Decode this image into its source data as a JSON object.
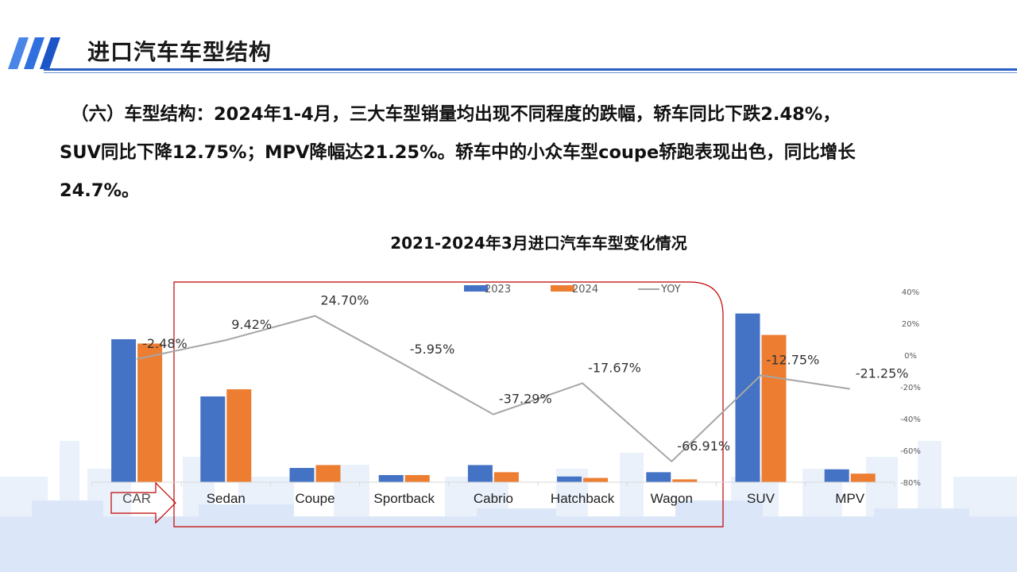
{
  "header": {
    "title": "进口汽车车型结构"
  },
  "body": {
    "lines": [
      "（六）车型结构：2024年1-4月，三大车型销量均出现不同程度的跌幅，轿车同比下跌2.48%，",
      "SUV同比下降12.75%；MPV降幅达21.25%。轿车中的小众车型coupe轿跑表现出色，同比增长",
      "24.7%。"
    ]
  },
  "colors": {
    "accent": "#2b5fc4",
    "bar2023": "#4472c4",
    "bar2024": "#ed7d31",
    "yoy_line": "#a5a5a5",
    "highlight_box": "#c00000"
  },
  "chart_data": {
    "type": "bar",
    "title": "2021-2024年3月进口汽车车型变化情况",
    "categories": [
      "CAR",
      "Sedan",
      "Coupe",
      "Sportback",
      "Cabrio",
      "Hatchback",
      "Wagon",
      "SUV",
      "MPV"
    ],
    "series": [
      {
        "name": "2023",
        "type": "bar",
        "axis": "left",
        "values": [
          100,
          60,
          10,
          5,
          12,
          4,
          7,
          118,
          9
        ]
      },
      {
        "name": "2024",
        "type": "bar",
        "axis": "left",
        "values": [
          97,
          65,
          12,
          5,
          7,
          3,
          2,
          103,
          6
        ]
      },
      {
        "name": "YOY",
        "type": "line",
        "axis": "right",
        "values": [
          -2.48,
          9.42,
          24.7,
          -5.95,
          -37.29,
          -17.67,
          -66.91,
          -12.75,
          -21.25
        ]
      }
    ],
    "data_labels": [
      "-2.48%",
      "9.42%",
      "24.70%",
      "-5.95%",
      "-37.29%",
      "-17.67%",
      "-66.91%",
      "-12.75%",
      "-21.25%"
    ],
    "right_axis": {
      "ticks": [
        "40%",
        "20%",
        "0%",
        "-20%",
        "-40%",
        "-60%",
        "-80%"
      ],
      "ylim": [
        -80,
        40
      ]
    },
    "legend_position": "top",
    "grid": false
  }
}
